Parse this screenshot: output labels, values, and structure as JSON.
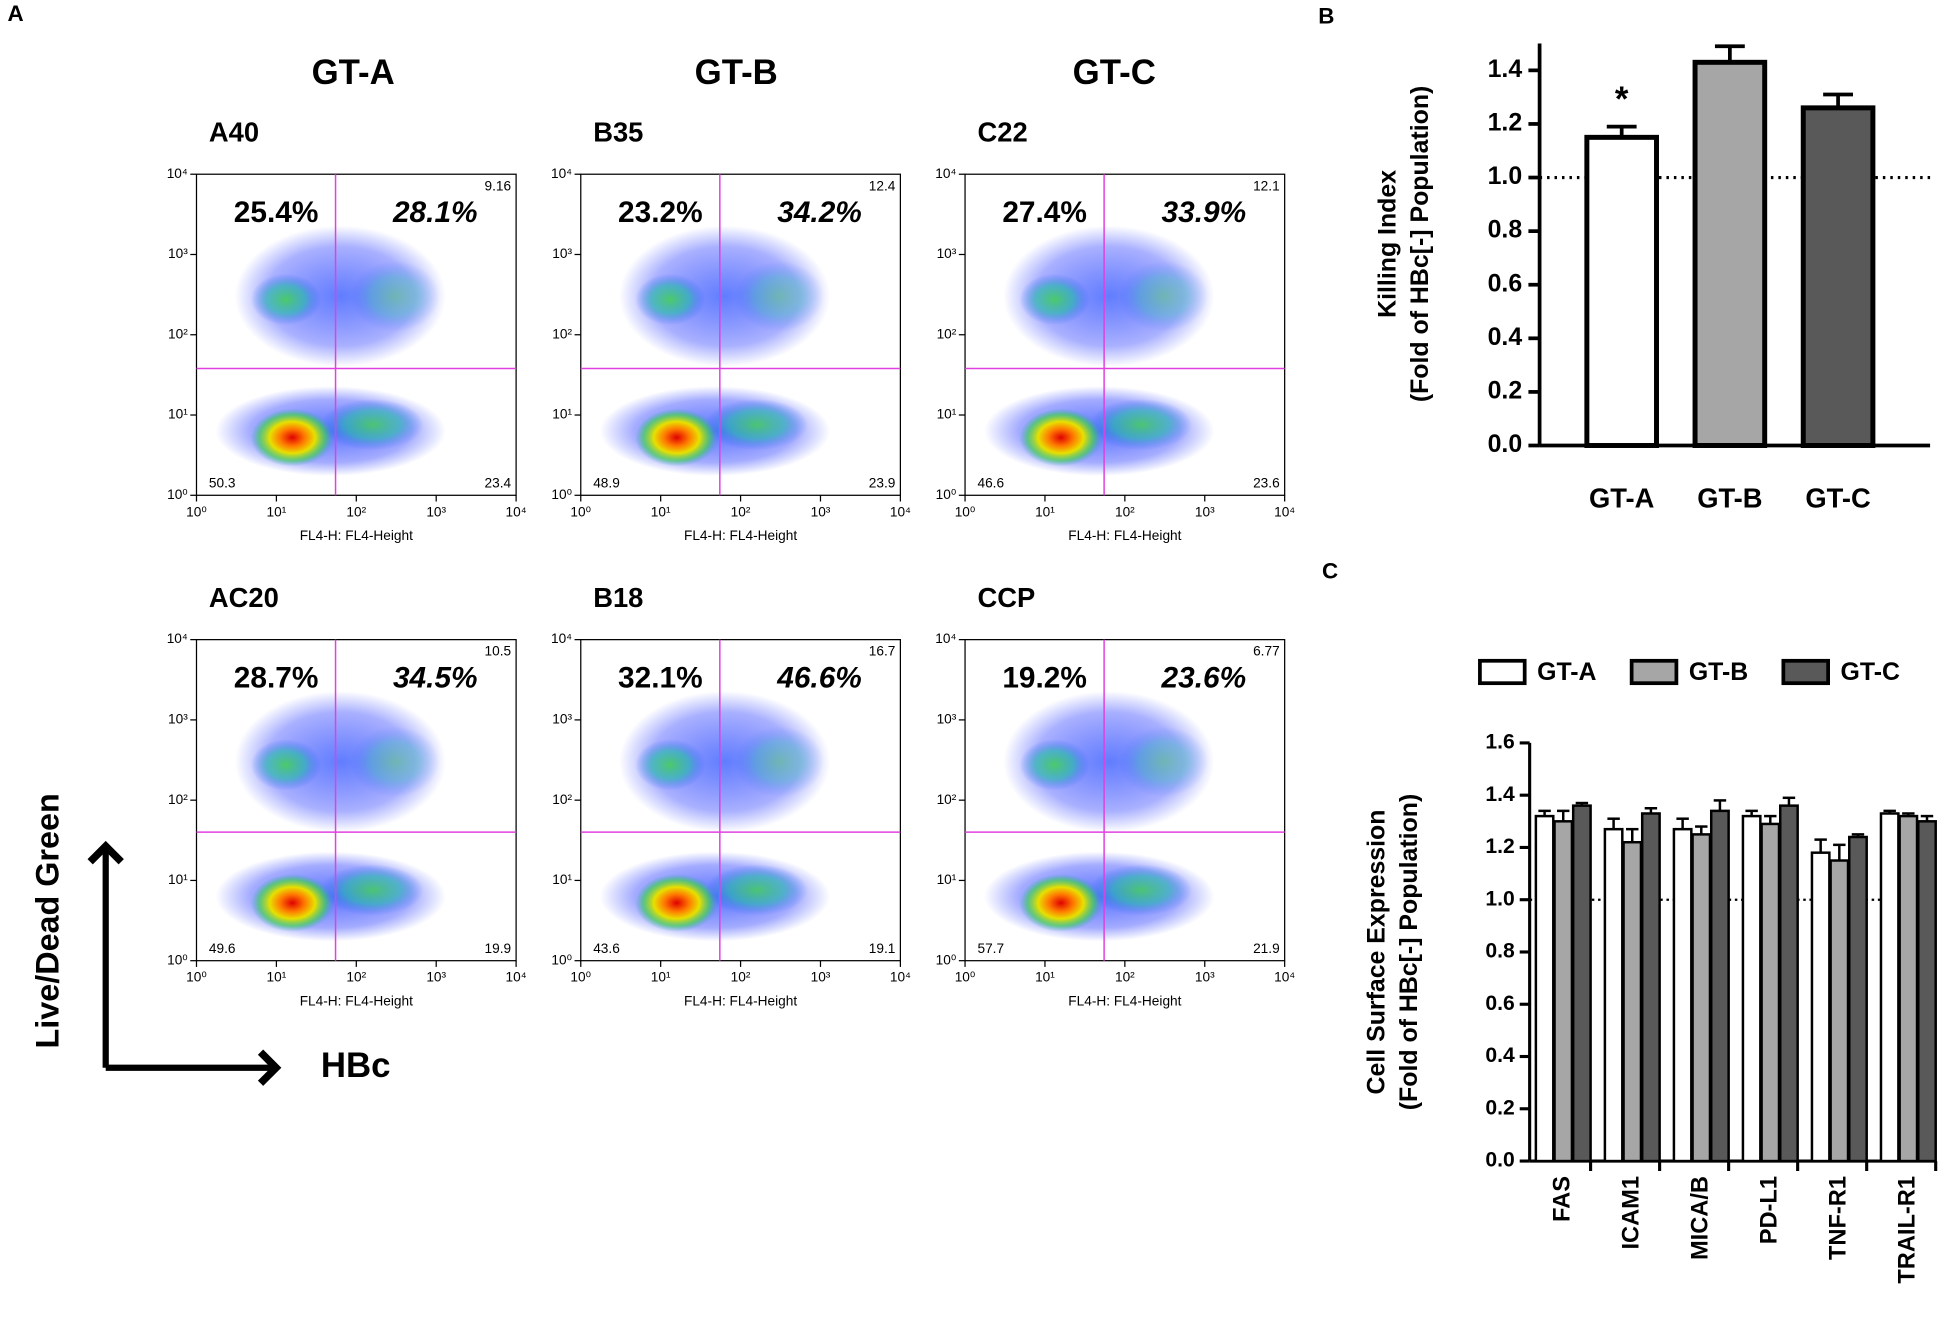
{
  "panel_labels": [
    "A",
    "B",
    "C"
  ],
  "group_headers": [
    "GT-A",
    "GT-B",
    "GT-C"
  ],
  "axis_arrows": {
    "y": "Live/Dead Green",
    "x": "HBc"
  },
  "chart_data": [
    {
      "type": "flow",
      "title": "A40",
      "xlabel": "FL4-H: FL4-Height",
      "log": true,
      "xlim": [
        1,
        10000
      ],
      "ylim": [
        1,
        10000
      ],
      "xticks": [
        {
          "value": 1,
          "label": "10⁰"
        },
        {
          "value": 10,
          "label": "10¹"
        },
        {
          "value": 100,
          "label": "10²"
        },
        {
          "value": 1000,
          "label": "10³"
        },
        {
          "value": 10000,
          "label": "10⁴"
        }
      ],
      "yticks": [
        {
          "value": 1,
          "label": "10⁰"
        },
        {
          "value": 10,
          "label": "10¹"
        },
        {
          "value": 100,
          "label": "10²"
        },
        {
          "value": 1000,
          "label": "10³"
        },
        {
          "value": 10000,
          "label": "10⁴"
        }
      ],
      "gate": [
        55,
        38
      ],
      "gate_color": "#e040e0",
      "quadrant_labels": {
        "upper_left": "25.4%",
        "upper_right": "28.1%",
        "corner_upper_right": "9.16",
        "corner_lower_left": "50.3",
        "corner_lower_right": "23.4"
      }
    },
    {
      "type": "flow",
      "title": "B35",
      "xlabel": "FL4-H: FL4-Height",
      "log": true,
      "xlim": [
        1,
        10000
      ],
      "ylim": [
        1,
        10000
      ],
      "xticks": [
        {
          "value": 1,
          "label": "10⁰"
        },
        {
          "value": 10,
          "label": "10¹"
        },
        {
          "value": 100,
          "label": "10²"
        },
        {
          "value": 1000,
          "label": "10³"
        },
        {
          "value": 10000,
          "label": "10⁴"
        }
      ],
      "yticks": [
        {
          "value": 1,
          "label": "10⁰"
        },
        {
          "value": 10,
          "label": "10¹"
        },
        {
          "value": 100,
          "label": "10²"
        },
        {
          "value": 1000,
          "label": "10³"
        },
        {
          "value": 10000,
          "label": "10⁴"
        }
      ],
      "gate": [
        55,
        38
      ],
      "gate_color": "#e040e0",
      "quadrant_labels": {
        "upper_left": "23.2%",
        "upper_right": "34.2%",
        "corner_upper_right": "12.4",
        "corner_lower_left": "48.9",
        "corner_lower_right": "23.9"
      }
    },
    {
      "type": "flow",
      "title": "C22",
      "xlabel": "FL4-H: FL4-Height",
      "log": true,
      "xlim": [
        1,
        10000
      ],
      "ylim": [
        1,
        10000
      ],
      "xticks": [
        {
          "value": 1,
          "label": "10⁰"
        },
        {
          "value": 10,
          "label": "10¹"
        },
        {
          "value": 100,
          "label": "10²"
        },
        {
          "value": 1000,
          "label": "10³"
        },
        {
          "value": 10000,
          "label": "10⁴"
        }
      ],
      "yticks": [
        {
          "value": 1,
          "label": "10⁰"
        },
        {
          "value": 10,
          "label": "10¹"
        },
        {
          "value": 100,
          "label": "10²"
        },
        {
          "value": 1000,
          "label": "10³"
        },
        {
          "value": 10000,
          "label": "10⁴"
        }
      ],
      "gate": [
        55,
        38
      ],
      "gate_color": "#e040e0",
      "quadrant_labels": {
        "upper_left": "27.4%",
        "upper_right": "33.9%",
        "corner_upper_right": "12.1",
        "corner_lower_left": "46.6",
        "corner_lower_right": "23.6"
      }
    },
    {
      "type": "flow",
      "title": "AC20",
      "xlabel": "FL4-H: FL4-Height",
      "log": true,
      "xlim": [
        1,
        10000
      ],
      "ylim": [
        1,
        10000
      ],
      "xticks": [
        {
          "value": 1,
          "label": "10⁰"
        },
        {
          "value": 10,
          "label": "10¹"
        },
        {
          "value": 100,
          "label": "10²"
        },
        {
          "value": 1000,
          "label": "10³"
        },
        {
          "value": 10000,
          "label": "10⁴"
        }
      ],
      "yticks": [
        {
          "value": 1,
          "label": "10⁰"
        },
        {
          "value": 10,
          "label": "10¹"
        },
        {
          "value": 100,
          "label": "10²"
        },
        {
          "value": 1000,
          "label": "10³"
        },
        {
          "value": 10000,
          "label": "10⁴"
        }
      ],
      "gate": [
        55,
        40
      ],
      "gate_color": "#e040e0",
      "quadrant_labels": {
        "upper_left": "28.7%",
        "upper_right": "34.5%",
        "corner_upper_right": "10.5",
        "corner_lower_left": "49.6",
        "corner_lower_right": "19.9"
      }
    },
    {
      "type": "flow",
      "title": "B18",
      "xlabel": "FL4-H: FL4-Height",
      "log": true,
      "xlim": [
        1,
        10000
      ],
      "ylim": [
        1,
        10000
      ],
      "xticks": [
        {
          "value": 1,
          "label": "10⁰"
        },
        {
          "value": 10,
          "label": "10¹"
        },
        {
          "value": 100,
          "label": "10²"
        },
        {
          "value": 1000,
          "label": "10³"
        },
        {
          "value": 10000,
          "label": "10⁴"
        }
      ],
      "yticks": [
        {
          "value": 1,
          "label": "10⁰"
        },
        {
          "value": 10,
          "label": "10¹"
        },
        {
          "value": 100,
          "label": "10²"
        },
        {
          "value": 1000,
          "label": "10³"
        },
        {
          "value": 10000,
          "label": "10⁴"
        }
      ],
      "gate": [
        55,
        40
      ],
      "gate_color": "#e040e0",
      "quadrant_labels": {
        "upper_left": "32.1%",
        "upper_right": "46.6%",
        "corner_upper_right": "16.7",
        "corner_lower_left": "43.6",
        "corner_lower_right": "19.1"
      }
    },
    {
      "type": "flow",
      "title": "CCP",
      "xlabel": "FL4-H: FL4-Height",
      "log": true,
      "xlim": [
        1,
        10000
      ],
      "ylim": [
        1,
        10000
      ],
      "xticks": [
        {
          "value": 1,
          "label": "10⁰"
        },
        {
          "value": 10,
          "label": "10¹"
        },
        {
          "value": 100,
          "label": "10²"
        },
        {
          "value": 1000,
          "label": "10³"
        },
        {
          "value": 10000,
          "label": "10⁴"
        }
      ],
      "yticks": [
        {
          "value": 1,
          "label": "10⁰"
        },
        {
          "value": 10,
          "label": "10¹"
        },
        {
          "value": 100,
          "label": "10²"
        },
        {
          "value": 1000,
          "label": "10³"
        },
        {
          "value": 10000,
          "label": "10⁴"
        }
      ],
      "gate": [
        55,
        40
      ],
      "gate_color": "#e040e0",
      "quadrant_labels": {
        "upper_left": "19.2%",
        "upper_right": "23.6%",
        "corner_upper_right": "6.77",
        "corner_lower_left": "57.7",
        "corner_lower_right": "21.9"
      }
    },
    {
      "type": "bar",
      "ylabel": [
        "Killing Index",
        "(Fold of HBc[-] Population)"
      ],
      "categories": [
        "GT-A",
        "GT-B",
        "GT-C"
      ],
      "values": [
        1.15,
        1.43,
        1.26
      ],
      "errors": [
        0.04,
        0.06,
        0.05
      ],
      "colors": [
        "#ffffff",
        "#a6a6a6",
        "#595959"
      ],
      "value_annotations": [
        "*",
        null,
        null
      ],
      "ylim": [
        0,
        1.5
      ],
      "yticks": [
        {
          "value": 0,
          "label": "0.0"
        },
        0.2,
        0.4,
        0.6,
        0.8,
        {
          "value": 1,
          "label": "1.0"
        },
        1.2,
        1.4
      ],
      "refline": 1
    },
    {
      "type": "grouped_bar",
      "ylabel": [
        "Cell Surface Expression",
        "(Fold of HBc[-] Population)"
      ],
      "categories": [
        "FAS",
        "ICAM1",
        "MICA/B",
        "PD-L1",
        "TNF-R1",
        "TRAIL-R1"
      ],
      "series": [
        {
          "name": "GT-A",
          "color": "#ffffff",
          "values": [
            1.32,
            1.27,
            1.27,
            1.32,
            1.18,
            1.33
          ],
          "errors": [
            0.02,
            0.04,
            0.04,
            0.02,
            0.05,
            0.01
          ]
        },
        {
          "name": "GT-B",
          "color": "#a6a6a6",
          "values": [
            1.3,
            1.22,
            1.25,
            1.29,
            1.15,
            1.32
          ],
          "errors": [
            0.04,
            0.05,
            0.03,
            0.03,
            0.06,
            0.01
          ]
        },
        {
          "name": "GT-C",
          "color": "#595959",
          "values": [
            1.36,
            1.33,
            1.34,
            1.36,
            1.24,
            1.3
          ],
          "errors": [
            0.01,
            0.02,
            0.04,
            0.03,
            0.01,
            0.02
          ]
        }
      ],
      "ylim": [
        0,
        1.6
      ],
      "yticks": [
        {
          "value": 0,
          "label": "0.0"
        },
        0.2,
        0.4,
        0.6,
        0.8,
        {
          "value": 1,
          "label": "1.0"
        },
        1.2,
        1.4,
        1.6
      ],
      "refline": 1,
      "legend": "top"
    }
  ]
}
